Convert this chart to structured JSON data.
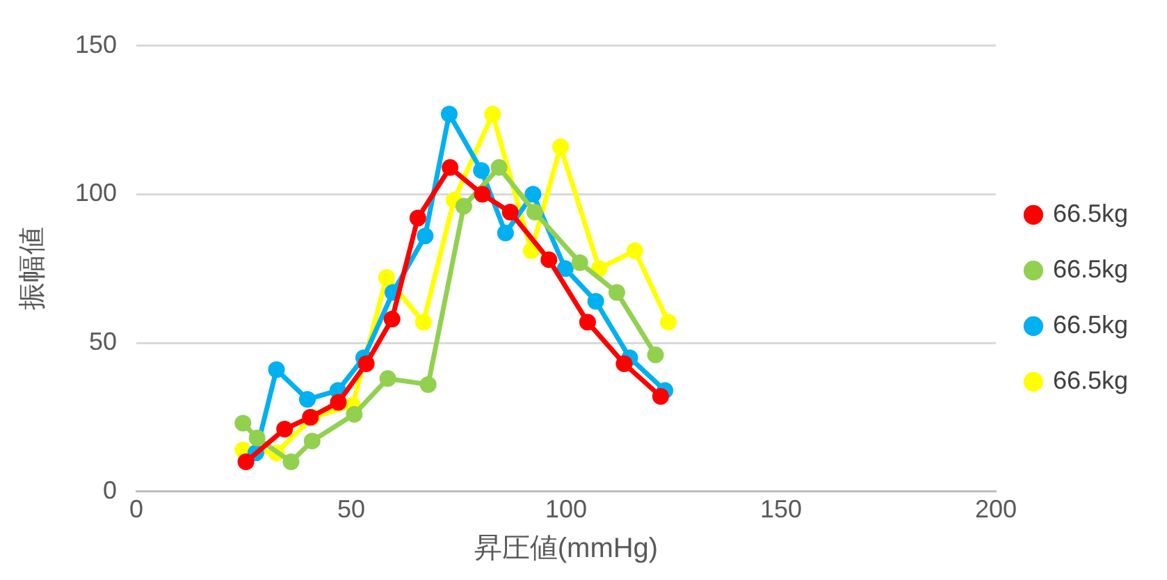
{
  "chart_data": {
    "type": "line",
    "xlabel": "昇圧値(mmHg)",
    "ylabel": "振幅値",
    "xlim": [
      0,
      200
    ],
    "xticks": [
      0,
      50,
      100,
      150,
      200
    ],
    "ylim": [
      0,
      150
    ],
    "yticks": [
      0,
      50,
      100,
      150
    ],
    "grid": "y",
    "legend": "right",
    "marker": "circle",
    "line_style": "solid",
    "series": [
      {
        "name": "66.5kg",
        "color": "#ff0000",
        "x": [
          25.5,
          34.5,
          40.5,
          47,
          53.5,
          59.5,
          65.5,
          73,
          80.5,
          87,
          96,
          105,
          113.5,
          122
        ],
        "values": [
          10,
          21,
          25,
          30,
          43,
          58,
          92,
          109,
          100,
          94,
          78,
          57,
          43,
          32
        ]
      },
      {
        "name": "66.5kg",
        "color": "#92d050",
        "x": [
          24.8,
          28.1,
          36,
          40.9,
          50.7,
          58.5,
          67.9,
          76.2,
          84.4,
          92.7,
          103.2,
          111.8,
          120.8
        ],
        "values": [
          23,
          18,
          10,
          17,
          26,
          38,
          36,
          96,
          109,
          94,
          77,
          67,
          46
        ]
      },
      {
        "name": "66.5kg",
        "color": "#00b0f0",
        "x": [
          27.8,
          32.6,
          39.8,
          46.9,
          52.9,
          59.7,
          67.2,
          72.8,
          80.3,
          85.9,
          92.3,
          99.8,
          106.9,
          114.8,
          123
        ],
        "values": [
          13,
          41,
          31,
          34,
          45,
          67,
          86,
          127,
          108,
          87,
          100,
          75,
          64,
          45,
          34
        ]
      },
      {
        "name": "66.5kg",
        "color": "#ffff00",
        "x": [
          24.8,
          32.6,
          40.9,
          50.3,
          58.2,
          66.8,
          73.9,
          82.9,
          91.9,
          98.7,
          107.7,
          116,
          123.8
        ],
        "values": [
          14,
          13,
          25,
          29,
          72,
          57,
          98,
          127,
          81,
          116,
          75,
          81,
          57
        ]
      }
    ]
  }
}
